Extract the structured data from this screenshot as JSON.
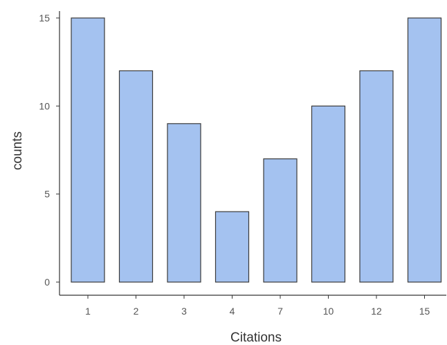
{
  "chart_data": {
    "type": "bar",
    "categories": [
      "1",
      "2",
      "3",
      "4",
      "7",
      "10",
      "12",
      "15"
    ],
    "values": [
      15,
      12,
      9,
      4,
      7,
      10,
      12,
      15
    ],
    "title": "",
    "xlabel": "Citations",
    "ylabel": "counts",
    "ylim": [
      0,
      15
    ],
    "yticks": [
      "0",
      "5",
      "10",
      "15"
    ],
    "grid": false,
    "legend": "none",
    "bar_color": "#a4c2f0",
    "bar_edge_color": "#3a3a3a"
  }
}
